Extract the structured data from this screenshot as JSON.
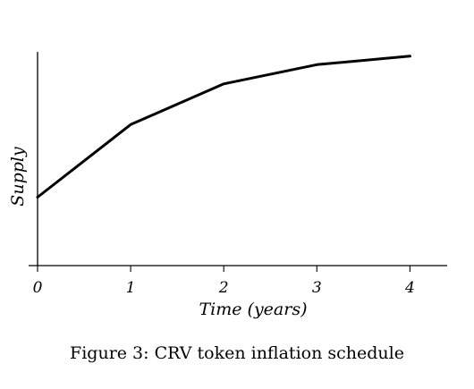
{
  "chart_data": {
    "type": "line",
    "title": "",
    "xlabel": "Time (years)",
    "ylabel": "Supply",
    "xlim": [
      0,
      4.4
    ],
    "ylim": [
      0,
      1
    ],
    "grid": false,
    "x_ticks": [
      "0",
      "1",
      "2",
      "3",
      "4"
    ],
    "y_ticks": [],
    "series": [
      {
        "x": [
          0,
          1,
          2,
          3,
          4
        ],
        "y": [
          0.32,
          0.66,
          0.85,
          0.94,
          0.98
        ]
      }
    ],
    "colors": {
      "line": "#000000"
    }
  },
  "caption": "Figure 3: CRV token inflation schedule"
}
